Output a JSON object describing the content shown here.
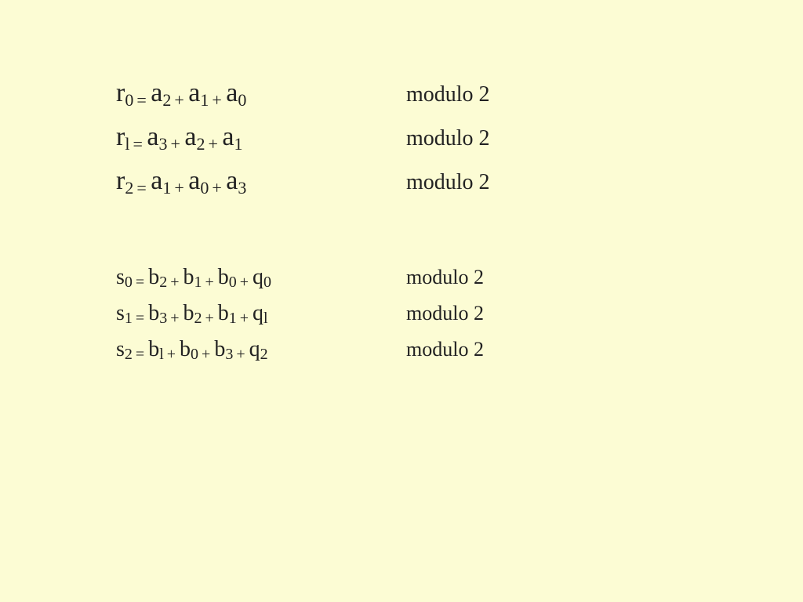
{
  "background_color": "#fcfcd4",
  "text_color": "#222222",
  "block1_main_fontsize": 34,
  "block1_sub_fontsize": 22,
  "block2_main_fontsize": 28,
  "block2_sub_fontsize": 20,
  "mod1_fontsize": 28,
  "mod2_fontsize": 26,
  "equations_r": [
    {
      "lhs_var": "r",
      "lhs_sub": "0",
      "terms": [
        {
          "var": "a",
          "sub": "2"
        },
        {
          "var": "a",
          "sub": "1"
        },
        {
          "var": "a",
          "sub": "0"
        }
      ],
      "annotation": "modulo 2"
    },
    {
      "lhs_var": "r",
      "lhs_sub": "l",
      "terms": [
        {
          "var": "a",
          "sub": "3"
        },
        {
          "var": "a",
          "sub": "2"
        },
        {
          "var": "a",
          "sub": "1"
        }
      ],
      "annotation": "modulo 2"
    },
    {
      "lhs_var": "r",
      "lhs_sub": "2",
      "terms": [
        {
          "var": "a",
          "sub": "1"
        },
        {
          "var": "a",
          "sub": "0"
        },
        {
          "var": "a",
          "sub": "3"
        }
      ],
      "annotation": "modulo 2"
    }
  ],
  "equations_s": [
    {
      "lhs_var": "s",
      "lhs_sub": "0",
      "terms": [
        {
          "var": "b",
          "sub": "2"
        },
        {
          "var": "b",
          "sub": "1"
        },
        {
          "var": "b",
          "sub": "0"
        },
        {
          "var": "q",
          "sub": "0"
        }
      ],
      "annotation": "modulo 2"
    },
    {
      "lhs_var": "s",
      "lhs_sub": "1",
      "terms": [
        {
          "var": "b",
          "sub": "3"
        },
        {
          "var": "b",
          "sub": "2"
        },
        {
          "var": "b",
          "sub": "1"
        },
        {
          "var": "q",
          "sub": "l"
        }
      ],
      "annotation": "modulo 2"
    },
    {
      "lhs_var": "s",
      "lhs_sub": "2",
      "terms": [
        {
          "var": "b",
          "sub": "l"
        },
        {
          "var": "b",
          "sub": "0"
        },
        {
          "var": "b",
          "sub": "3"
        },
        {
          "var": "q",
          "sub": "2"
        }
      ],
      "annotation": "modulo 2"
    }
  ]
}
